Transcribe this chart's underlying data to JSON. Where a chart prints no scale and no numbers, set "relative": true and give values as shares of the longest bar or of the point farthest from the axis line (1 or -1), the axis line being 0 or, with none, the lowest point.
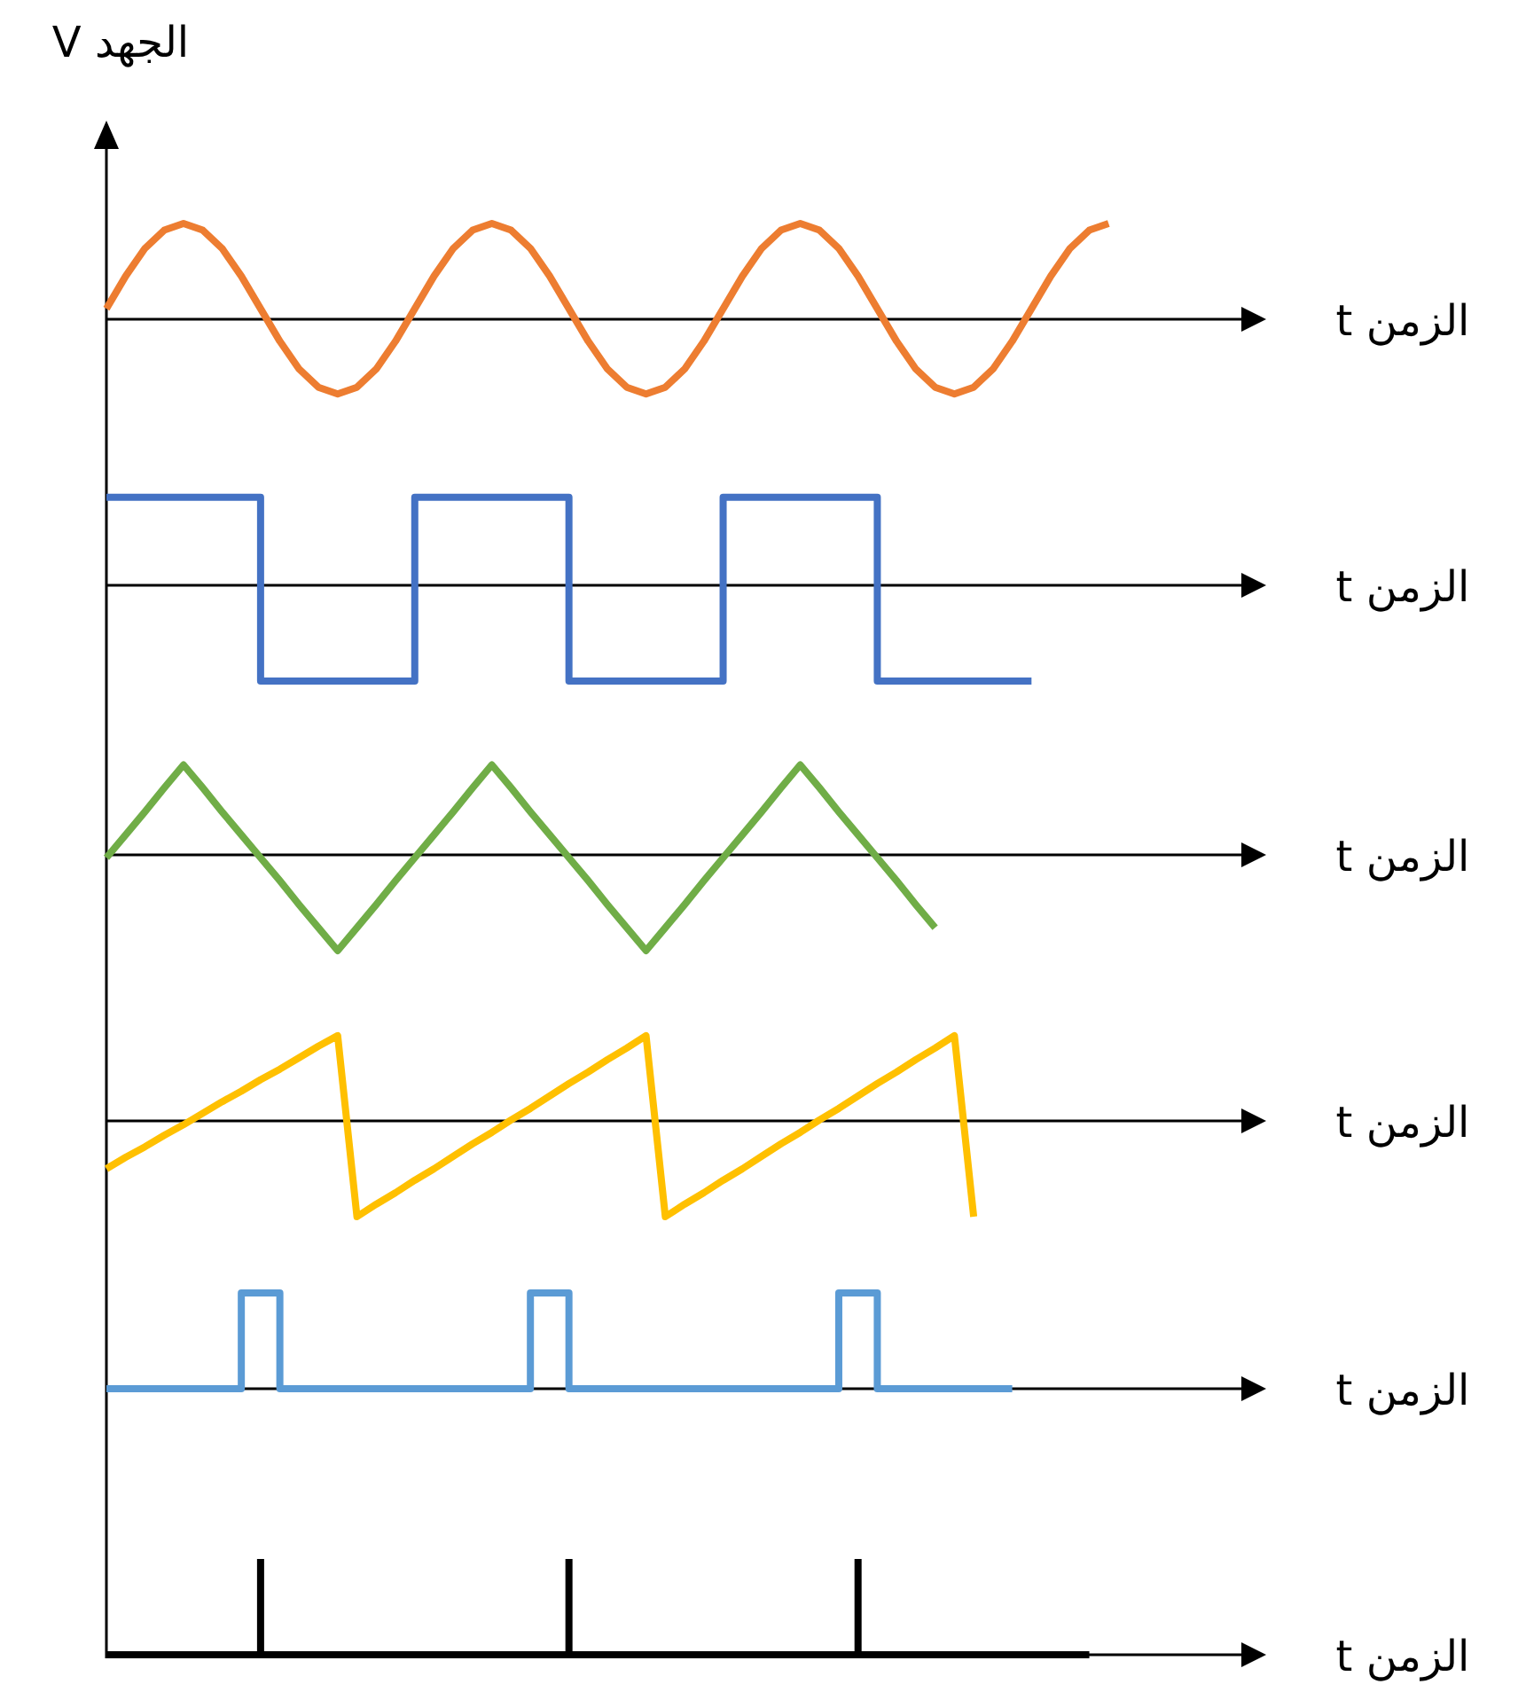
{
  "chart_data": [
    {
      "type": "line",
      "ylabel": "الجهد V",
      "xlabel": "الزمن t",
      "relative": true,
      "categories": [
        null,
        null,
        null,
        null,
        null,
        null,
        null,
        null,
        null,
        null,
        null,
        null,
        null,
        null,
        null,
        null,
        null,
        null,
        null,
        null,
        null,
        null,
        null,
        null,
        null,
        null,
        null,
        null,
        null,
        null,
        null,
        null,
        null,
        null,
        null,
        null,
        null,
        null,
        null,
        null,
        null,
        null,
        null,
        null,
        null,
        null,
        null,
        null,
        null,
        null,
        null,
        null,
        null,
        null
      ],
      "series": [
        {
          "color": "#ed7d31",
          "values": [
            0.11,
            0.45,
            0.74,
            0.93,
            1,
            0.93,
            0.74,
            0.45,
            0.11,
            -0.23,
            -0.52,
            -0.71,
            -0.78,
            -0.71,
            -0.52,
            -0.23,
            0.11,
            0.45,
            0.74,
            0.93,
            1,
            0.93,
            0.74,
            0.45,
            0.11,
            -0.23,
            -0.52,
            -0.71,
            -0.78,
            -0.71,
            -0.52,
            -0.23,
            0.11,
            0.45,
            0.74,
            0.93,
            1,
            0.93,
            0.74,
            0.45,
            0.11,
            -0.23,
            -0.52,
            -0.71,
            -0.78,
            -0.71,
            -0.52,
            -0.23,
            0.11,
            0.45,
            0.74,
            0.93,
            1,
            null
          ]
        }
      ]
    },
    {
      "type": "step",
      "xlabel": "الزمن t",
      "relative": true,
      "categories": [
        null,
        null,
        null,
        null,
        null,
        null,
        null,
        null,
        null,
        null,
        null,
        null,
        null,
        null,
        null,
        null,
        null,
        null,
        null,
        null,
        null,
        null,
        null,
        null,
        null,
        null,
        null,
        null,
        null,
        null,
        null,
        null,
        null,
        null,
        null,
        null,
        null,
        null,
        null,
        null,
        null,
        null,
        null,
        null,
        null,
        null,
        null,
        null,
        null,
        null,
        null,
        null,
        null,
        null
      ],
      "series": [
        {
          "color": "#4472c4",
          "values": [
            0.92,
            0.92,
            0.92,
            0.92,
            0.92,
            0.92,
            0.92,
            0.92,
            -1,
            -1,
            -1,
            -1,
            -1,
            -1,
            -1,
            -1,
            0.92,
            0.92,
            0.92,
            0.92,
            0.92,
            0.92,
            0.92,
            0.92,
            -1,
            -1,
            -1,
            -1,
            -1,
            -1,
            -1,
            -1,
            0.92,
            0.92,
            0.92,
            0.92,
            0.92,
            0.92,
            0.92,
            0.92,
            -1,
            -1,
            -1,
            -1,
            -1,
            -1,
            -1,
            -1,
            -1,
            null,
            null,
            null,
            null,
            null
          ]
        }
      ]
    },
    {
      "type": "line",
      "xlabel": "الزمن t",
      "relative": true,
      "categories": [
        null,
        null,
        null,
        null,
        null,
        null,
        null,
        null,
        null,
        null,
        null,
        null,
        null,
        null,
        null,
        null,
        null,
        null,
        null,
        null,
        null,
        null,
        null,
        null,
        null,
        null,
        null,
        null,
        null,
        null,
        null,
        null,
        null,
        null,
        null,
        null,
        null,
        null,
        null,
        null,
        null,
        null,
        null,
        null,
        null,
        null,
        null,
        null,
        null,
        null,
        null,
        null,
        null,
        null
      ],
      "series": [
        {
          "color": "#70ad47",
          "values": [
            -0.03,
            0.21,
            0.45,
            0.7,
            0.94,
            0.7,
            0.45,
            0.21,
            -0.03,
            -0.27,
            -0.52,
            -0.76,
            -1,
            -0.76,
            -0.52,
            -0.27,
            -0.03,
            0.21,
            0.45,
            0.7,
            0.94,
            0.7,
            0.45,
            0.21,
            -0.03,
            -0.27,
            -0.52,
            -0.76,
            -1,
            -0.76,
            -0.52,
            -0.27,
            -0.03,
            0.21,
            0.45,
            0.7,
            0.94,
            0.7,
            0.45,
            0.21,
            -0.03,
            -0.27,
            -0.52,
            -0.76,
            null,
            null,
            null,
            null,
            null,
            null,
            null,
            null,
            null,
            null
          ]
        }
      ]
    },
    {
      "type": "line",
      "xlabel": "الزمن t",
      "relative": true,
      "categories": [
        null,
        null,
        null,
        null,
        null,
        null,
        null,
        null,
        null,
        null,
        null,
        null,
        null,
        null,
        null,
        null,
        null,
        null,
        null,
        null,
        null,
        null,
        null,
        null,
        null,
        null,
        null,
        null,
        null,
        null,
        null,
        null,
        null,
        null,
        null,
        null,
        null,
        null,
        null,
        null,
        null,
        null,
        null,
        null,
        null,
        null,
        null,
        null,
        null,
        null,
        null,
        null,
        null,
        null
      ],
      "series": [
        {
          "color": "#ffc000",
          "values": [
            -0.5,
            -0.38,
            -0.27,
            -0.15,
            -0.04,
            0.08,
            0.2,
            0.31,
            0.43,
            0.54,
            0.66,
            0.78,
            0.89,
            -1,
            -0.87,
            -0.75,
            -0.62,
            -0.5,
            -0.37,
            -0.24,
            -0.12,
            0.01,
            0.13,
            0.26,
            0.39,
            0.51,
            0.64,
            0.76,
            0.89,
            -1,
            -0.87,
            -0.75,
            -0.62,
            -0.5,
            -0.37,
            -0.24,
            -0.12,
            0.01,
            0.13,
            0.26,
            0.39,
            0.51,
            0.64,
            0.76,
            0.89,
            -1,
            null,
            null,
            null,
            null,
            null,
            null,
            null,
            null
          ]
        }
      ]
    },
    {
      "type": "step",
      "xlabel": "الزمن t",
      "relative": true,
      "categories": [
        null,
        null,
        null,
        null,
        null,
        null,
        null,
        null,
        null,
        null,
        null,
        null,
        null,
        null,
        null,
        null,
        null,
        null,
        null,
        null,
        null,
        null,
        null,
        null,
        null,
        null,
        null,
        null,
        null,
        null,
        null,
        null,
        null,
        null,
        null,
        null,
        null,
        null,
        null,
        null,
        null,
        null,
        null,
        null,
        null,
        null,
        null,
        null,
        null,
        null,
        null,
        null,
        null,
        null
      ],
      "series": [
        {
          "color": "#5b9bd5",
          "values": [
            0,
            0,
            0,
            0,
            0,
            0,
            0,
            1,
            1,
            0,
            0,
            0,
            0,
            0,
            0,
            0,
            0,
            0,
            0,
            0,
            0,
            0,
            1,
            1,
            0,
            0,
            0,
            0,
            0,
            0,
            0,
            0,
            0,
            0,
            0,
            0,
            0,
            0,
            1,
            1,
            0,
            0,
            0,
            0,
            0,
            0,
            0,
            0,
            null,
            null,
            null,
            null,
            null,
            null
          ]
        }
      ]
    },
    {
      "type": "bar",
      "xlabel": "الزمن t",
      "relative": true,
      "categories": [
        null,
        null,
        null,
        null,
        null,
        null,
        null,
        null,
        null,
        null,
        null,
        null,
        null,
        null,
        null,
        null,
        null,
        null,
        null,
        null,
        null,
        null,
        null,
        null,
        null,
        null,
        null,
        null,
        null,
        null,
        null,
        null,
        null,
        null,
        null,
        null,
        null,
        null,
        null,
        null,
        null,
        null,
        null,
        null,
        null,
        null,
        null,
        null,
        null,
        null,
        null,
        null,
        null,
        null
      ],
      "series": [
        {
          "type": "line",
          "color": "#000000",
          "values": [
            0,
            0,
            0,
            0,
            0,
            0,
            0,
            0,
            0,
            0,
            0,
            0,
            0,
            0,
            0,
            0,
            0,
            0,
            0,
            0,
            0,
            0,
            0,
            0,
            0,
            0,
            0,
            0,
            0,
            0,
            0,
            0,
            0,
            0,
            0,
            0,
            0,
            0,
            0,
            0,
            0,
            0,
            0,
            0,
            0,
            0,
            0,
            0,
            0,
            0,
            0,
            0,
            null,
            null
          ]
        },
        {
          "color": "#000000",
          "values": [
            null,
            null,
            null,
            null,
            null,
            null,
            null,
            null,
            1,
            null,
            null,
            null,
            null,
            null,
            null,
            null,
            null,
            null,
            null,
            null,
            null,
            null,
            null,
            null,
            1,
            null,
            null,
            null,
            null,
            null,
            null,
            null,
            null,
            null,
            null,
            null,
            null,
            null,
            null,
            1,
            null,
            null,
            null,
            null,
            null,
            null,
            null,
            null,
            null,
            null,
            null,
            null,
            null,
            null
          ]
        }
      ]
    }
  ]
}
